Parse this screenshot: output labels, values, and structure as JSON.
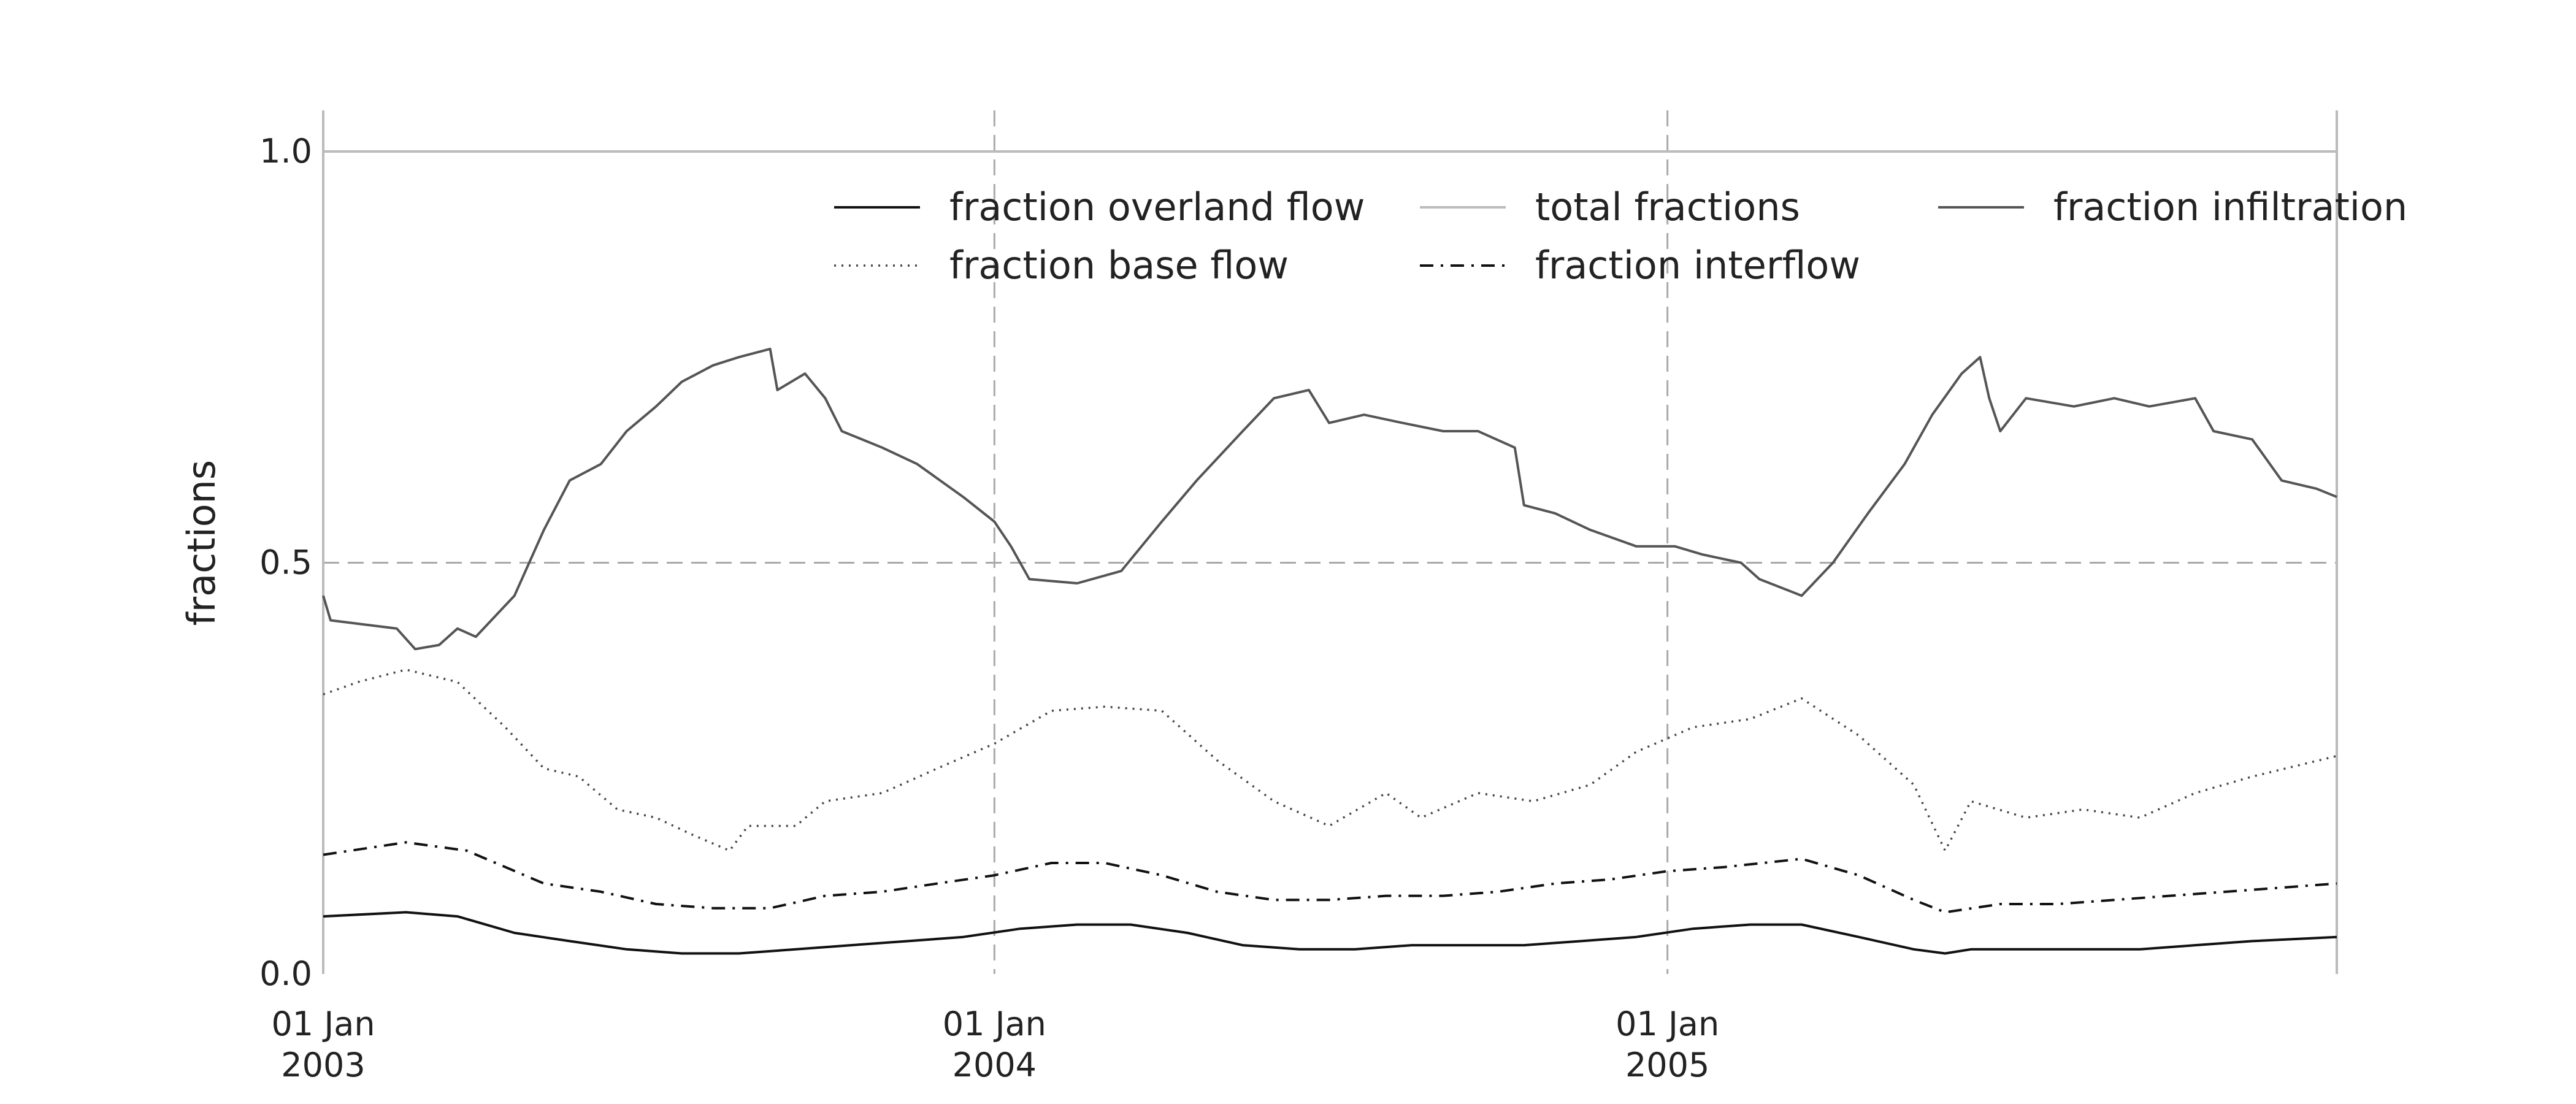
{
  "chart_data": {
    "type": "line",
    "title": "",
    "xlabel": "",
    "ylabel": "fractions",
    "x_range": [
      "2003-01-01",
      "2005-12-31"
    ],
    "ylim": [
      0.0,
      1.05
    ],
    "y_ticks": [
      0.0,
      0.5,
      1.0
    ],
    "y_tick_labels": [
      "0.0",
      "0.5",
      "1.0"
    ],
    "x_ticks": [
      {
        "date": "2003-01-01",
        "line1": "01 Jan",
        "line2": "2003"
      },
      {
        "date": "2004-01-01",
        "line1": "01 Jan",
        "line2": "2004"
      },
      {
        "date": "2005-01-01",
        "line1": "01 Jan",
        "line2": "2005"
      }
    ],
    "grid": "dashed at 0.5 and yearly ticks",
    "legend_placement": "top-right",
    "legend_columns": 3,
    "series": [
      {
        "name": "fraction overland flow",
        "style": "solid",
        "color": "#111111",
        "points": [
          [
            "2003-01-01",
            0.07
          ],
          [
            "2003-02-15",
            0.075
          ],
          [
            "2003-03-15",
            0.07
          ],
          [
            "2003-04-15",
            0.05
          ],
          [
            "2003-05-15",
            0.04
          ],
          [
            "2003-06-15",
            0.03
          ],
          [
            "2003-07-15",
            0.025
          ],
          [
            "2003-08-15",
            0.025
          ],
          [
            "2003-09-15",
            0.03
          ],
          [
            "2003-10-15",
            0.035
          ],
          [
            "2003-11-15",
            0.04
          ],
          [
            "2003-12-15",
            0.045
          ],
          [
            "2004-01-15",
            0.055
          ],
          [
            "2004-02-15",
            0.06
          ],
          [
            "2004-03-15",
            0.06
          ],
          [
            "2004-04-15",
            0.05
          ],
          [
            "2004-05-15",
            0.035
          ],
          [
            "2004-06-15",
            0.03
          ],
          [
            "2004-07-15",
            0.03
          ],
          [
            "2004-08-15",
            0.035
          ],
          [
            "2004-09-15",
            0.035
          ],
          [
            "2004-10-15",
            0.035
          ],
          [
            "2004-11-15",
            0.04
          ],
          [
            "2004-12-15",
            0.045
          ],
          [
            "2005-01-15",
            0.055
          ],
          [
            "2005-02-15",
            0.06
          ],
          [
            "2005-03-15",
            0.06
          ],
          [
            "2005-04-15",
            0.045
          ],
          [
            "2005-05-15",
            0.03
          ],
          [
            "2005-06-01",
            0.025
          ],
          [
            "2005-06-15",
            0.03
          ],
          [
            "2005-07-15",
            0.03
          ],
          [
            "2005-08-15",
            0.03
          ],
          [
            "2005-09-15",
            0.03
          ],
          [
            "2005-10-15",
            0.035
          ],
          [
            "2005-11-15",
            0.04
          ],
          [
            "2005-12-31",
            0.045
          ]
        ]
      },
      {
        "name": "fraction base flow",
        "style": "dotted",
        "color": "#444444",
        "points": [
          [
            "2003-01-01",
            0.34
          ],
          [
            "2003-01-20",
            0.355
          ],
          [
            "2003-02-15",
            0.37
          ],
          [
            "2003-03-15",
            0.355
          ],
          [
            "2003-04-10",
            0.3
          ],
          [
            "2003-05-01",
            0.25
          ],
          [
            "2003-05-20",
            0.24
          ],
          [
            "2003-06-10",
            0.2
          ],
          [
            "2003-07-01",
            0.19
          ],
          [
            "2003-07-20",
            0.17
          ],
          [
            "2003-08-10",
            0.15
          ],
          [
            "2003-08-20",
            0.18
          ],
          [
            "2003-09-15",
            0.18
          ],
          [
            "2003-10-01",
            0.21
          ],
          [
            "2003-11-01",
            0.22
          ],
          [
            "2003-12-01",
            0.25
          ],
          [
            "2004-01-01",
            0.28
          ],
          [
            "2004-02-01",
            0.32
          ],
          [
            "2004-03-01",
            0.325
          ],
          [
            "2004-04-01",
            0.32
          ],
          [
            "2004-05-01",
            0.26
          ],
          [
            "2004-06-01",
            0.21
          ],
          [
            "2004-07-01",
            0.18
          ],
          [
            "2004-08-01",
            0.22
          ],
          [
            "2004-08-20",
            0.19
          ],
          [
            "2004-09-20",
            0.22
          ],
          [
            "2004-10-20",
            0.21
          ],
          [
            "2004-11-20",
            0.23
          ],
          [
            "2004-12-15",
            0.27
          ],
          [
            "2005-01-15",
            0.3
          ],
          [
            "2005-02-15",
            0.31
          ],
          [
            "2005-03-15",
            0.335
          ],
          [
            "2005-04-15",
            0.29
          ],
          [
            "2005-05-15",
            0.23
          ],
          [
            "2005-06-01",
            0.15
          ],
          [
            "2005-06-15",
            0.21
          ],
          [
            "2005-07-15",
            0.19
          ],
          [
            "2005-08-15",
            0.2
          ],
          [
            "2005-09-15",
            0.19
          ],
          [
            "2005-10-15",
            0.22
          ],
          [
            "2005-11-15",
            0.24
          ],
          [
            "2005-12-31",
            0.265
          ]
        ]
      },
      {
        "name": "total fractions",
        "style": "solid",
        "color": "#bbbbbb",
        "points": [
          [
            "2003-01-01",
            1.0
          ],
          [
            "2005-12-31",
            1.0
          ]
        ]
      },
      {
        "name": "fraction interflow",
        "style": "dashdot",
        "color": "#111111",
        "points": [
          [
            "2003-01-01",
            0.145
          ],
          [
            "2003-02-15",
            0.16
          ],
          [
            "2003-03-20",
            0.15
          ],
          [
            "2003-05-01",
            0.11
          ],
          [
            "2003-06-01",
            0.1
          ],
          [
            "2003-07-01",
            0.085
          ],
          [
            "2003-08-01",
            0.08
          ],
          [
            "2003-09-01",
            0.08
          ],
          [
            "2003-10-01",
            0.095
          ],
          [
            "2003-11-01",
            0.1
          ],
          [
            "2003-12-01",
            0.11
          ],
          [
            "2004-01-01",
            0.12
          ],
          [
            "2004-02-01",
            0.135
          ],
          [
            "2004-03-01",
            0.135
          ],
          [
            "2004-04-01",
            0.12
          ],
          [
            "2004-05-01",
            0.1
          ],
          [
            "2004-06-01",
            0.09
          ],
          [
            "2004-07-01",
            0.09
          ],
          [
            "2004-08-01",
            0.095
          ],
          [
            "2004-09-01",
            0.095
          ],
          [
            "2004-10-01",
            0.1
          ],
          [
            "2004-11-01",
            0.11
          ],
          [
            "2004-12-01",
            0.115
          ],
          [
            "2005-01-01",
            0.125
          ],
          [
            "2005-02-01",
            0.13
          ],
          [
            "2005-03-15",
            0.14
          ],
          [
            "2005-04-15",
            0.12
          ],
          [
            "2005-05-15",
            0.09
          ],
          [
            "2005-06-01",
            0.075
          ],
          [
            "2005-07-01",
            0.085
          ],
          [
            "2005-08-01",
            0.085
          ],
          [
            "2005-09-01",
            0.09
          ],
          [
            "2005-10-01",
            0.095
          ],
          [
            "2005-11-01",
            0.1
          ],
          [
            "2005-12-31",
            0.11
          ]
        ]
      },
      {
        "name": "fraction infiltration",
        "style": "solid",
        "color": "#555555",
        "points": [
          [
            "2003-01-01",
            0.46
          ],
          [
            "2003-01-05",
            0.43
          ],
          [
            "2003-02-10",
            0.42
          ],
          [
            "2003-02-20",
            0.395
          ],
          [
            "2003-03-05",
            0.4
          ],
          [
            "2003-03-15",
            0.42
          ],
          [
            "2003-03-25",
            0.41
          ],
          [
            "2003-04-15",
            0.46
          ],
          [
            "2003-05-01",
            0.54
          ],
          [
            "2003-05-15",
            0.6
          ],
          [
            "2003-06-01",
            0.62
          ],
          [
            "2003-06-15",
            0.66
          ],
          [
            "2003-07-01",
            0.69
          ],
          [
            "2003-07-15",
            0.72
          ],
          [
            "2003-08-01",
            0.74
          ],
          [
            "2003-08-15",
            0.75
          ],
          [
            "2003-09-01",
            0.76
          ],
          [
            "2003-09-05",
            0.71
          ],
          [
            "2003-09-20",
            0.73
          ],
          [
            "2003-10-01",
            0.7
          ],
          [
            "2003-10-10",
            0.66
          ],
          [
            "2003-11-01",
            0.64
          ],
          [
            "2003-11-20",
            0.62
          ],
          [
            "2003-12-15",
            0.58
          ],
          [
            "2004-01-01",
            0.55
          ],
          [
            "2004-01-10",
            0.52
          ],
          [
            "2004-01-20",
            0.48
          ],
          [
            "2004-02-15",
            0.475
          ],
          [
            "2004-03-10",
            0.49
          ],
          [
            "2004-04-01",
            0.55
          ],
          [
            "2004-04-20",
            0.6
          ],
          [
            "2004-05-15",
            0.66
          ],
          [
            "2004-06-01",
            0.7
          ],
          [
            "2004-06-20",
            0.71
          ],
          [
            "2004-07-01",
            0.67
          ],
          [
            "2004-07-20",
            0.68
          ],
          [
            "2004-08-10",
            0.67
          ],
          [
            "2004-09-01",
            0.66
          ],
          [
            "2004-09-20",
            0.66
          ],
          [
            "2004-10-10",
            0.64
          ],
          [
            "2004-10-15",
            0.57
          ],
          [
            "2004-11-01",
            0.56
          ],
          [
            "2004-11-20",
            0.54
          ],
          [
            "2004-12-15",
            0.52
          ],
          [
            "2005-01-05",
            0.52
          ],
          [
            "2005-01-20",
            0.51
          ],
          [
            "2005-02-10",
            0.5
          ],
          [
            "2005-02-20",
            0.48
          ],
          [
            "2005-03-15",
            0.46
          ],
          [
            "2005-04-01",
            0.5
          ],
          [
            "2005-04-20",
            0.56
          ],
          [
            "2005-05-10",
            0.62
          ],
          [
            "2005-05-25",
            0.68
          ],
          [
            "2005-06-10",
            0.73
          ],
          [
            "2005-06-20",
            0.75
          ],
          [
            "2005-06-25",
            0.7
          ],
          [
            "2005-07-01",
            0.66
          ],
          [
            "2005-07-15",
            0.7
          ],
          [
            "2005-08-10",
            0.69
          ],
          [
            "2005-09-01",
            0.7
          ],
          [
            "2005-09-20",
            0.69
          ],
          [
            "2005-10-15",
            0.7
          ],
          [
            "2005-10-25",
            0.66
          ],
          [
            "2005-11-15",
            0.65
          ],
          [
            "2005-12-01",
            0.6
          ],
          [
            "2005-12-20",
            0.59
          ],
          [
            "2005-12-31",
            0.58
          ]
        ]
      }
    ]
  }
}
